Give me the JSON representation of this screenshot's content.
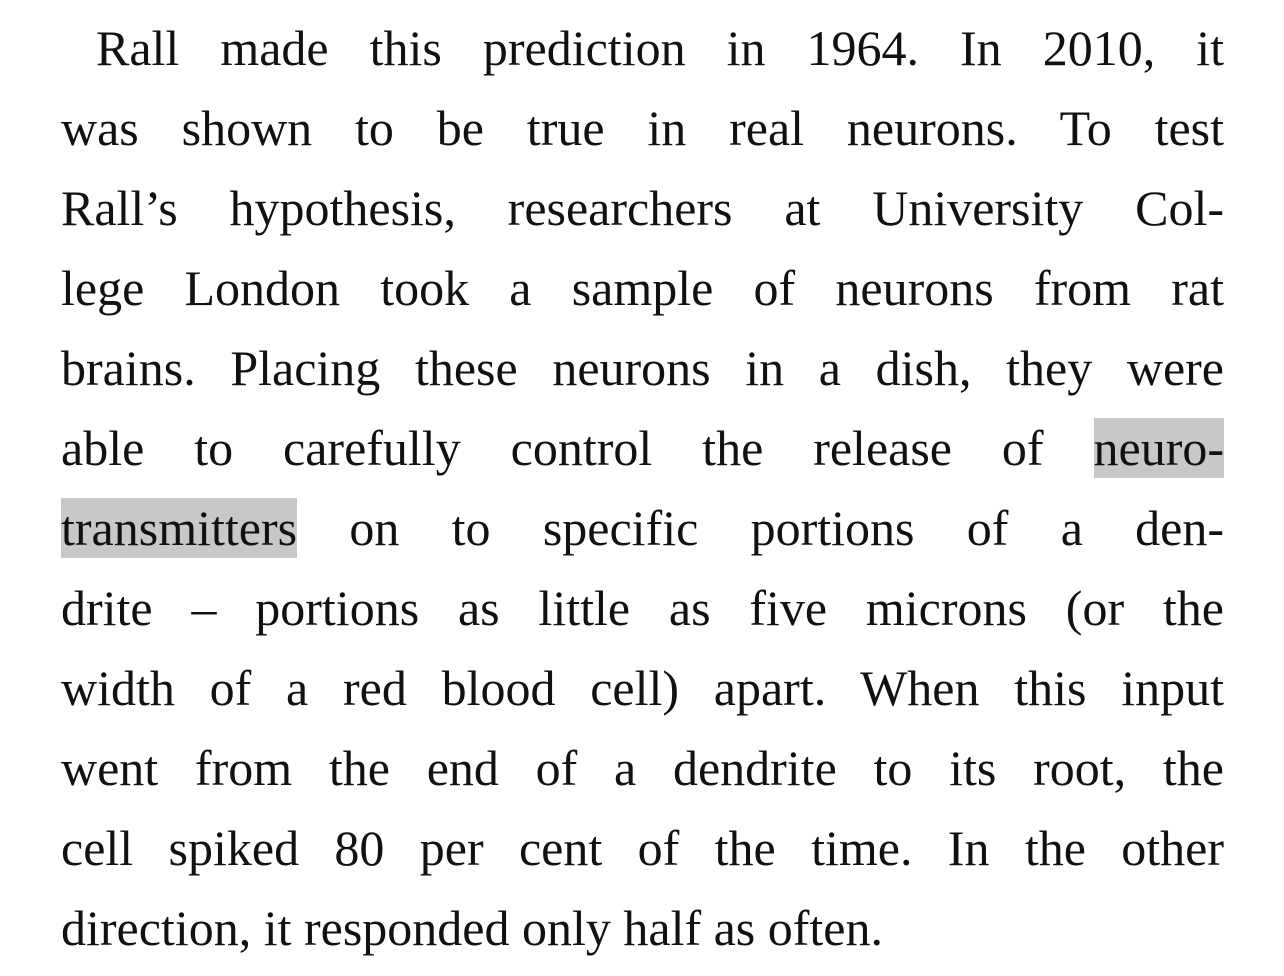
{
  "paragraph": {
    "lines": [
      "Rall made this prediction in 1964. In 2010, it",
      "was shown to be true in real neurons. To test",
      "Rall’s hypothesis, researchers at University Col-",
      "lege London took a sample of neurons from rat",
      "brains. Placing these neurons in a dish, they were",
      "able to carefully control the release of",
      "neuro-",
      "transmitters",
      "on to specific portions of a den-",
      "drite – portions as little as five microns (or the",
      "width of a red blood cell) apart. When this input",
      "went from the end of a dendrite to its root, the",
      "cell spiked 80 per cent of the time. In the other",
      "direction, it responded only half as often."
    ]
  },
  "highlight_color": "#c8c8c8"
}
